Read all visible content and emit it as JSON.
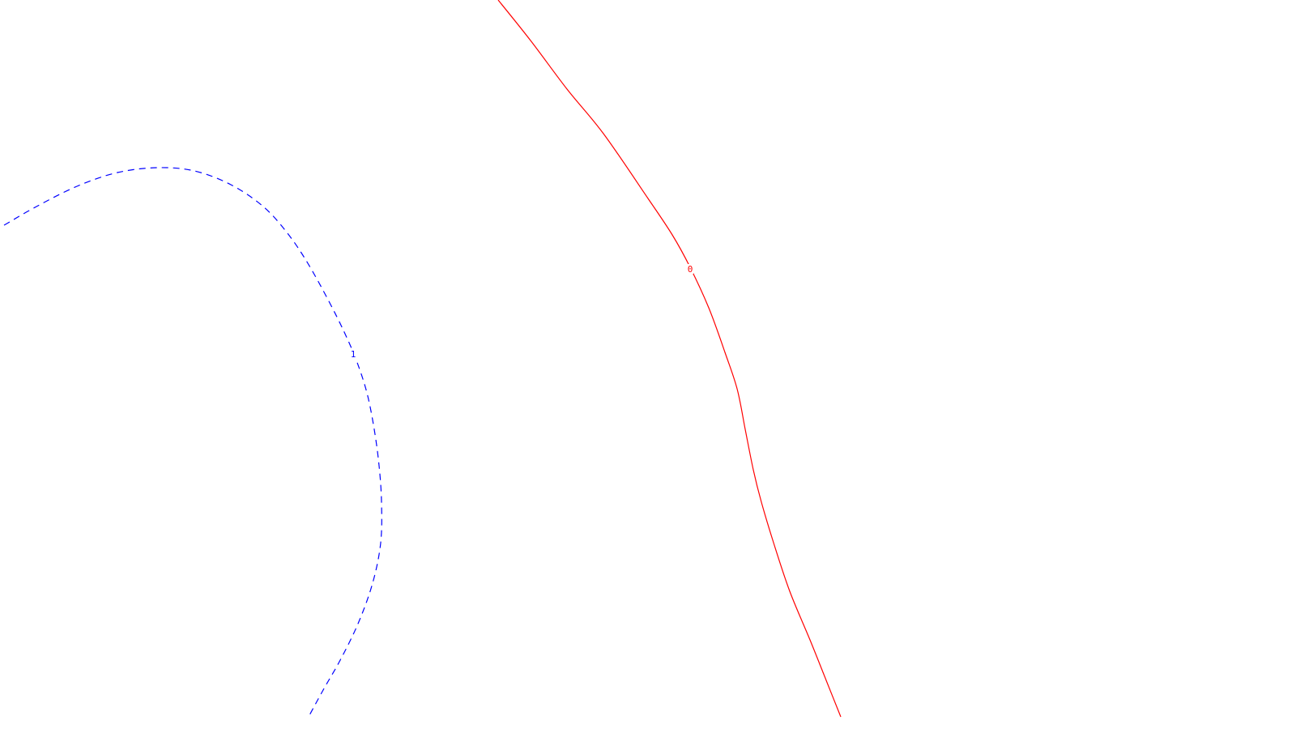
{
  "chart_data": {
    "type": "line",
    "grid": false,
    "legend": "none",
    "series": [
      {
        "label": "0",
        "color": "#ff0000",
        "dashed": false,
        "points": [
          [
            615,
            0
          ],
          [
            655,
            50
          ],
          [
            700,
            110
          ],
          [
            745,
            165
          ],
          [
            800,
            245
          ],
          [
            830,
            290
          ],
          [
            852,
            330
          ],
          [
            875,
            380
          ],
          [
            895,
            435
          ],
          [
            910,
            480
          ],
          [
            920,
            530
          ],
          [
            930,
            580
          ],
          [
            940,
            620
          ],
          [
            955,
            670
          ],
          [
            975,
            730
          ],
          [
            1000,
            790
          ],
          [
            1020,
            840
          ],
          [
            1038,
            885
          ]
        ]
      },
      {
        "label": "1",
        "color": "#0000ff",
        "dashed": true,
        "points": [
          [
            5,
            278
          ],
          [
            45,
            255
          ],
          [
            95,
            230
          ],
          [
            145,
            213
          ],
          [
            195,
            207
          ],
          [
            240,
            211
          ],
          [
            285,
            228
          ],
          [
            325,
            255
          ],
          [
            355,
            288
          ],
          [
            380,
            325
          ],
          [
            405,
            370
          ],
          [
            425,
            410
          ],
          [
            440,
            445
          ],
          [
            453,
            485
          ],
          [
            462,
            530
          ],
          [
            468,
            575
          ],
          [
            471,
            620
          ],
          [
            470,
            670
          ],
          [
            460,
            720
          ],
          [
            442,
            770
          ],
          [
            420,
            815
          ],
          [
            400,
            850
          ],
          [
            382,
            883
          ]
        ]
      }
    ]
  }
}
